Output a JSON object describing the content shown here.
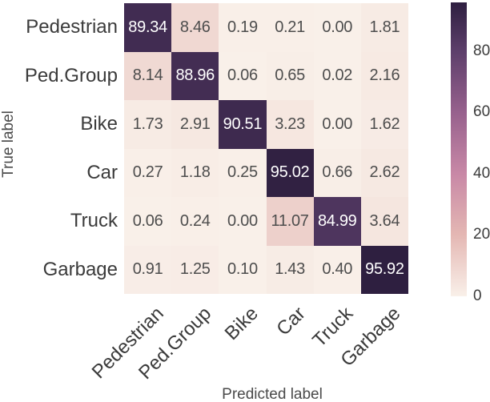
{
  "chart_data": {
    "type": "heatmap",
    "title": "",
    "xlabel": "Predicted label",
    "ylabel": "True label",
    "categories": [
      "Pedestrian",
      "Ped.Group",
      "Bike",
      "Car",
      "Truck",
      "Garbage"
    ],
    "matrix": [
      [
        89.34,
        8.46,
        0.19,
        0.21,
        0.0,
        1.81
      ],
      [
        8.14,
        88.96,
        0.06,
        0.65,
        0.02,
        2.16
      ],
      [
        1.73,
        2.91,
        90.51,
        3.23,
        0.0,
        1.62
      ],
      [
        0.27,
        1.18,
        0.25,
        95.02,
        0.66,
        2.62
      ],
      [
        0.06,
        0.24,
        0.0,
        11.07,
        84.99,
        3.64
      ],
      [
        0.91,
        1.25,
        0.1,
        1.43,
        0.4,
        95.92
      ]
    ],
    "value_decimals": 2,
    "colorbar": {
      "position": "right",
      "vmin": 0,
      "vmax": 95.92,
      "ticks": [
        0,
        20,
        40,
        60,
        80
      ]
    },
    "colormap_stops": [
      {
        "value": 0,
        "color": "#f9f0e9"
      },
      {
        "value": 20,
        "color": "#e4b7b3"
      },
      {
        "value": 40,
        "color": "#c888a6"
      },
      {
        "value": 60,
        "color": "#97618d"
      },
      {
        "value": 80,
        "color": "#5d3f6b"
      },
      {
        "value": 95.92,
        "color": "#2e1f40"
      }
    ],
    "annotation_colors": {
      "on_light": "#4d4d4d",
      "on_dark": "#ffffff"
    },
    "tick_label_color": "#3b3b3b",
    "axis_label_color": "#4a4a4a",
    "grid": false,
    "legend": "colorbar"
  }
}
